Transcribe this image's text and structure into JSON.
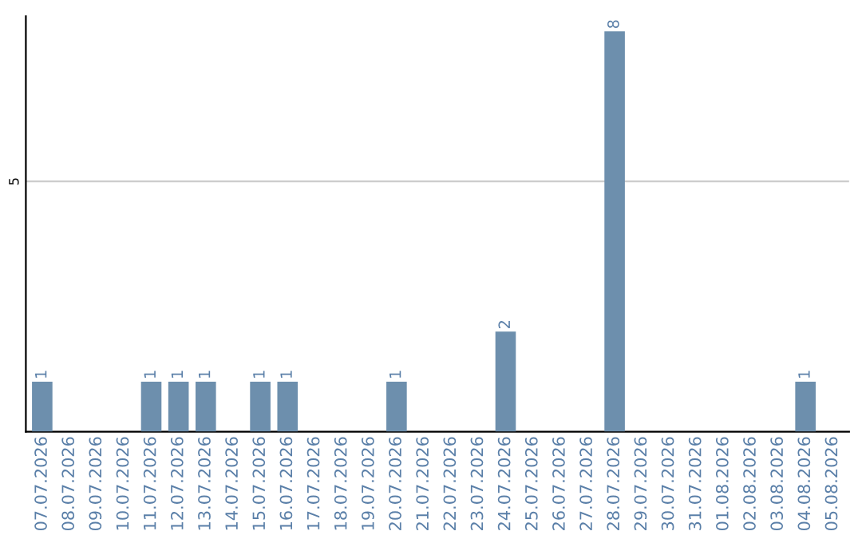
{
  "chart_data": {
    "type": "bar",
    "categories": [
      "07.07.2026",
      "08.07.2026",
      "09.07.2026",
      "10.07.2026",
      "11.07.2026",
      "12.07.2026",
      "13.07.2026",
      "14.07.2026",
      "15.07.2026",
      "16.07.2026",
      "17.07.2026",
      "18.07.2026",
      "19.07.2026",
      "20.07.2026",
      "21.07.2026",
      "22.07.2026",
      "23.07.2026",
      "24.07.2026",
      "25.07.2026",
      "26.07.2026",
      "27.07.2026",
      "28.07.2026",
      "29.07.2026",
      "30.07.2026",
      "31.07.2026",
      "01.08.2026",
      "02.08.2026",
      "03.08.2026",
      "04.08.2026",
      "05.08.2026"
    ],
    "values": [
      1,
      0,
      0,
      0,
      1,
      1,
      1,
      0,
      1,
      1,
      0,
      0,
      0,
      1,
      0,
      0,
      0,
      2,
      0,
      0,
      0,
      8,
      0,
      0,
      0,
      0,
      0,
      0,
      1,
      0
    ],
    "value_labels": [
      "1",
      null,
      null,
      null,
      "1",
      "1",
      "1",
      null,
      "1",
      "1",
      null,
      null,
      null,
      "1",
      null,
      null,
      null,
      "2",
      null,
      null,
      null,
      "8",
      null,
      null,
      null,
      null,
      null,
      null,
      "1",
      null
    ],
    "color": "#6d8fad",
    "ylim": [
      0,
      8.3
    ],
    "yticks": [
      5
    ],
    "grid": "y"
  }
}
